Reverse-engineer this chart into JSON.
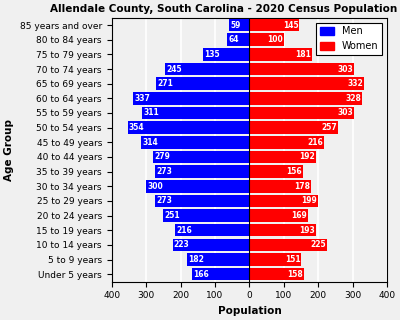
{
  "title": "Allendale County, South Carolina - 2020 Census Population Pyramid",
  "xlabel": "Population",
  "ylabel": "Age Group",
  "age_groups": [
    "Under 5 years",
    "5 to 9 years",
    "10 to 14 years",
    "15 to 19 years",
    "20 to 24 years",
    "25 to 29 years",
    "30 to 34 years",
    "35 to 39 years",
    "40 to 44 years",
    "45 to 49 years",
    "50 to 54 years",
    "55 to 59 years",
    "60 to 64 years",
    "65 to 69 years",
    "70 to 74 years",
    "75 to 79 years",
    "80 to 84 years",
    "85 years and over"
  ],
  "men": [
    166,
    182,
    223,
    216,
    251,
    273,
    300,
    273,
    279,
    314,
    354,
    311,
    337,
    271,
    245,
    135,
    64,
    59
  ],
  "women": [
    158,
    151,
    225,
    193,
    169,
    199,
    178,
    156,
    192,
    216,
    257,
    303,
    328,
    332,
    303,
    181,
    100,
    145
  ],
  "men_color": "#0000ff",
  "women_color": "#ff0000",
  "xlim": 400,
  "bar_height": 0.85,
  "title_fontsize": 7.5,
  "label_fontsize": 7.5,
  "tick_fontsize": 6.5,
  "bar_label_fontsize": 5.5,
  "legend_fontsize": 7,
  "background_color": "#f0f0f0",
  "grid_color": "#ffffff"
}
